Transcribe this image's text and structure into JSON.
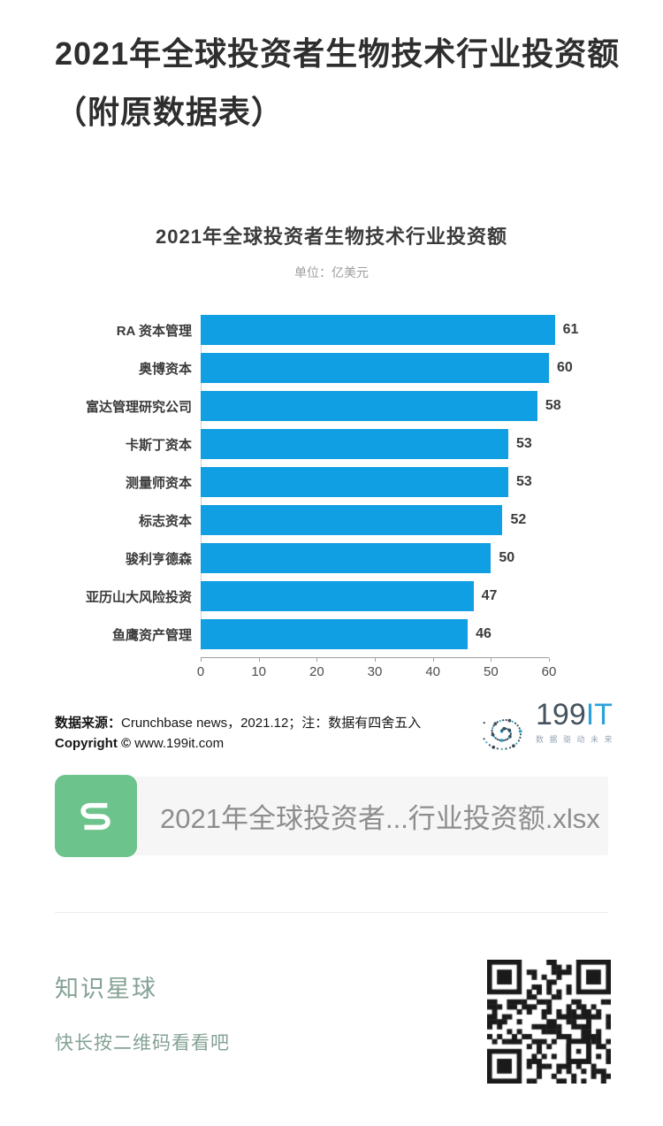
{
  "article": {
    "title": "2021年全球投资者生物技术行业投资额（附原数据表）",
    "title_lines": [
      "2021年全球投资者生物技术行业投资额",
      "（附原数据表）"
    ]
  },
  "chart": {
    "title": "2021年全球投资者生物技术行业投资额",
    "subtitle": "单位：亿美元",
    "source_label": "数据来源：",
    "source_text": "Crunchbase news，2021.12；注：数据有四舍五入",
    "copyright_label": "Copyright ©",
    "copyright_text": "www.199it.com",
    "logo": {
      "brand_number": "199",
      "brand_it": "IT",
      "tagline": "数据驱动未来"
    }
  },
  "chart_data": {
    "type": "bar",
    "orientation": "horizontal",
    "title": "2021年全球投资者生物技术行业投资额",
    "subtitle": "单位：亿美元",
    "unit": "亿美元",
    "categories": [
      "RA 资本管理",
      "奥博资本",
      "富达管理研究公司",
      "卡斯丁资本",
      "测量师资本",
      "标志资本",
      "骏利亨德森",
      "亚历山大风险投资",
      "鱼鹰资产管理"
    ],
    "values": [
      61,
      60,
      58,
      53,
      53,
      52,
      50,
      47,
      46
    ],
    "value_labels_shown": true,
    "xlim": [
      0,
      60
    ],
    "x_ticks": [
      0,
      10,
      20,
      30,
      40,
      50,
      60
    ],
    "grid": "off",
    "bar_color": "#109fe2"
  },
  "attachment": {
    "filename": "2021年全球投资者...行业投资额.xlsx",
    "icon_color": "#6cc38b",
    "icon_glyph": "S"
  },
  "promo": {
    "title": "知识星球",
    "subtitle": "快长按二维码看看吧",
    "text_color": "#85a295"
  }
}
